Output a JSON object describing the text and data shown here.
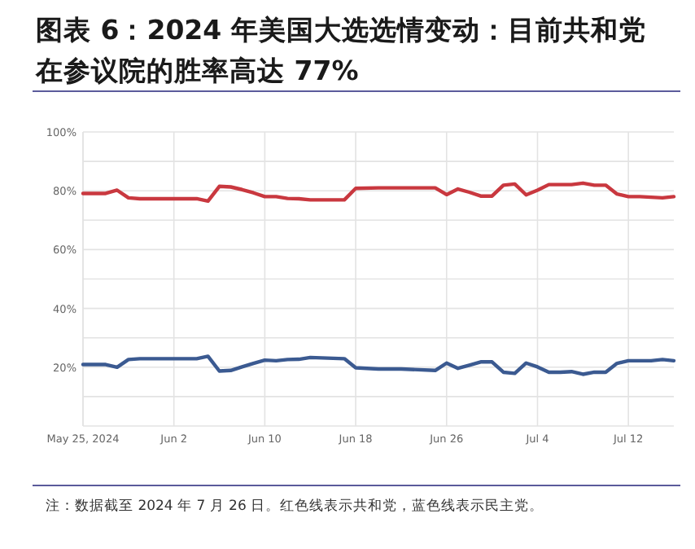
{
  "chart_data": {
    "type": "line",
    "title": "图表 6：2024 年美国大选选情变动：目前共和党在参议院的胜率高达 77%",
    "annotations": [
      "注：数据截至 2024 年 7 月 26 日。红色线表示共和党，蓝色线表示民主党。"
    ],
    "x": [
      "2024-05-25",
      "2024-05-27",
      "2024-05-28",
      "2024-05-29",
      "2024-05-30",
      "2024-06-04",
      "2024-06-05",
      "2024-06-06",
      "2024-06-07",
      "2024-06-08",
      "2024-06-09",
      "2024-06-10",
      "2024-06-11",
      "2024-06-12",
      "2024-06-13",
      "2024-06-14",
      "2024-06-17",
      "2024-06-18",
      "2024-06-20",
      "2024-06-22",
      "2024-06-25",
      "2024-06-26",
      "2024-06-27",
      "2024-06-28",
      "2024-06-29",
      "2024-06-30",
      "2024-07-01",
      "2024-07-02",
      "2024-07-03",
      "2024-07-04",
      "2024-07-05",
      "2024-07-06",
      "2024-07-07",
      "2024-07-08",
      "2024-07-09",
      "2024-07-10",
      "2024-07-11",
      "2024-07-12",
      "2024-07-13",
      "2024-07-14",
      "2024-07-15",
      "2024-07-16"
    ],
    "series": [
      {
        "color": "#c9383f",
        "values": [
          79.1,
          79.1,
          80.2,
          77.6,
          77.3,
          77.3,
          76.5,
          81.5,
          81.3,
          80.4,
          79.3,
          78,
          78,
          77.4,
          77.3,
          76.9,
          76.9,
          80.8,
          81,
          81,
          81,
          78.7,
          80.6,
          79.5,
          78.2,
          78.2,
          81.9,
          82.3,
          78.6,
          80.2,
          82.1,
          82.1,
          82.1,
          82.6,
          81.9,
          81.9,
          78.9,
          78,
          78,
          77.8,
          77.6,
          78
        ]
      },
      {
        "color": "#3b5a91",
        "values": [
          20.9,
          20.9,
          20,
          22.6,
          22.9,
          22.9,
          23.7,
          18.7,
          18.9,
          20.1,
          21.3,
          22.4,
          22.2,
          22.6,
          22.7,
          23.3,
          22.9,
          19.8,
          19.4,
          19.4,
          18.9,
          21.4,
          19.6,
          20.7,
          21.8,
          21.8,
          18.3,
          17.9,
          21.4,
          20.1,
          18.3,
          18.3,
          18.5,
          17.6,
          18.3,
          18.3,
          21.3,
          22.2,
          22.2,
          22.2,
          22.6,
          22.2
        ]
      }
    ],
    "xlim": [
      "2024-05-25",
      "2024-07-16"
    ],
    "xticks": [
      {
        "value": "2024-05-25",
        "label": "May 25, 2024"
      },
      {
        "value": "2024-06-02",
        "label": "Jun 2"
      },
      {
        "value": "2024-06-10",
        "label": "Jun 10"
      },
      {
        "value": "2024-06-18",
        "label": "Jun 18"
      },
      {
        "value": "2024-06-26",
        "label": "Jun 26"
      },
      {
        "value": "2024-07-04",
        "label": "Jul 4"
      },
      {
        "value": "2024-07-12",
        "label": "Jul 12"
      }
    ],
    "ylim": [
      0,
      100
    ],
    "yticks": [
      {
        "value": 10,
        "label": null
      },
      {
        "value": 20,
        "label": "20%"
      },
      {
        "value": 30,
        "label": null
      },
      {
        "value": 40,
        "label": "40%"
      },
      {
        "value": 50,
        "label": null
      },
      {
        "value": 60,
        "label": "60%"
      },
      {
        "value": 70,
        "label": null
      },
      {
        "value": 80,
        "label": "80%"
      },
      {
        "value": 90,
        "label": null
      },
      {
        "value": 100,
        "label": "100%"
      }
    ],
    "grid": true,
    "marker": "none",
    "line_style": "solid"
  }
}
